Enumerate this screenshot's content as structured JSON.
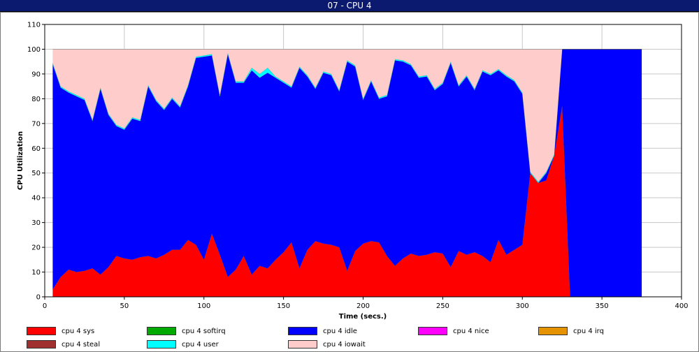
{
  "window": {
    "title": "07 - CPU 4"
  },
  "chart_data": {
    "type": "area",
    "stacked": true,
    "xlabel": "Time (secs.)",
    "ylabel": "CPU Utilization",
    "xlim": [
      0,
      400
    ],
    "ylim": [
      0,
      110
    ],
    "x_ticks": [
      0,
      50,
      100,
      150,
      200,
      250,
      300,
      350,
      400
    ],
    "y_ticks": [
      0,
      10,
      20,
      30,
      40,
      50,
      60,
      70,
      80,
      90,
      100,
      110
    ],
    "grid": true,
    "legend": "bottom",
    "x": [
      5,
      10,
      15,
      20,
      25,
      30,
      35,
      40,
      45,
      50,
      55,
      60,
      65,
      70,
      75,
      80,
      85,
      90,
      95,
      100,
      105,
      110,
      115,
      120,
      125,
      130,
      135,
      140,
      145,
      150,
      155,
      160,
      165,
      170,
      175,
      180,
      185,
      190,
      195,
      200,
      205,
      210,
      215,
      220,
      225,
      230,
      235,
      240,
      245,
      250,
      255,
      260,
      265,
      270,
      275,
      280,
      285,
      290,
      295,
      300,
      305,
      310,
      315,
      320,
      325,
      330,
      335,
      340,
      345,
      350,
      355,
      360,
      365,
      370,
      375
    ],
    "series": [
      {
        "name": "cpu 4 sys",
        "color": "#ff0000",
        "values": [
          3,
          8,
          11,
          10,
          10.5,
          11.5,
          9,
          12,
          16.5,
          15.5,
          15,
          16,
          16.5,
          15.5,
          17,
          19,
          19,
          23,
          21,
          15,
          25.5,
          17,
          8,
          11,
          16.5,
          9,
          12.5,
          11.5,
          15,
          18,
          22,
          11.5,
          19,
          22.5,
          21.5,
          21,
          20,
          10.5,
          18.5,
          21.5,
          22.5,
          22,
          16.5,
          12.5,
          15.5,
          17.5,
          16.5,
          17,
          18,
          17.5,
          12,
          18.5,
          17,
          18,
          16.5,
          14,
          23,
          17,
          19,
          21,
          50,
          46,
          47,
          57,
          77,
          0,
          0,
          0,
          0,
          0,
          0,
          0,
          0,
          0,
          0
        ]
      },
      {
        "name": "cpu 4 softirq",
        "color": "#00aa00",
        "values": [
          0,
          0,
          0,
          0,
          0,
          0,
          0,
          0,
          0,
          0,
          0,
          0,
          0,
          0,
          0,
          0,
          0,
          0,
          0,
          0,
          0,
          0,
          0,
          0,
          0,
          0,
          0,
          0,
          0,
          0,
          0,
          0,
          0,
          0,
          0,
          0,
          0,
          0,
          0,
          0,
          0,
          0,
          0,
          0,
          0,
          0,
          0,
          0,
          0,
          0,
          0,
          0,
          0,
          0,
          0,
          0,
          0,
          0,
          0,
          0,
          0,
          0,
          0,
          0,
          0,
          0,
          0,
          0,
          0,
          0,
          0,
          0,
          0,
          0,
          0
        ]
      },
      {
        "name": "cpu 4 idle",
        "color": "#0000ff",
        "values": [
          91,
          76.5,
          71.5,
          71,
          69,
          59.5,
          75,
          61.5,
          52.5,
          52,
          57,
          55,
          68.5,
          63.5,
          58.5,
          61,
          57.5,
          62,
          75.5,
          82,
          72,
          64,
          90,
          75.5,
          70,
          82.5,
          76,
          79,
          73.5,
          68.5,
          62.5,
          81,
          70,
          61.5,
          69,
          68.5,
          63,
          84.5,
          74.5,
          58,
          64.5,
          58,
          64.5,
          83,
          79.5,
          76,
          72,
          72,
          65.5,
          68.5,
          82.5,
          66.5,
          72,
          65.5,
          74.5,
          75.5,
          68.5,
          72,
          68,
          61,
          0,
          0,
          3,
          0,
          23,
          100,
          100,
          100,
          100,
          100,
          100,
          100,
          100,
          100,
          100
        ]
      },
      {
        "name": "cpu 4 nice",
        "color": "#ff00ff",
        "values": [
          0,
          0,
          0,
          0,
          0,
          0,
          0,
          0,
          0,
          0,
          0,
          0,
          0,
          0,
          0,
          0,
          0,
          0,
          0,
          0,
          0,
          0,
          0,
          0,
          0,
          0,
          0,
          0,
          0,
          0,
          0,
          0,
          0,
          0,
          0,
          0,
          0,
          0,
          0,
          0,
          0,
          0,
          0,
          0,
          0,
          0,
          0,
          0,
          0,
          0,
          0,
          0,
          0,
          0,
          0,
          0,
          0,
          0,
          0,
          0,
          0,
          0,
          0,
          0,
          0,
          0,
          0,
          0,
          0,
          0,
          0,
          0,
          0,
          0,
          0
        ]
      },
      {
        "name": "cpu 4 irq",
        "color": "#e59400",
        "values": [
          0,
          0,
          0,
          0,
          0,
          0,
          0,
          0,
          0,
          0,
          0,
          0,
          0,
          0,
          0,
          0,
          0,
          0,
          0,
          0,
          0,
          0,
          0,
          0,
          0,
          0,
          0,
          0,
          0,
          0,
          0,
          0,
          0,
          0,
          0,
          0,
          0,
          0,
          0,
          0,
          0,
          0,
          0,
          0,
          0,
          0,
          0,
          0,
          0,
          0,
          0,
          0,
          0,
          0,
          0,
          0,
          0,
          0,
          0,
          0,
          0,
          0,
          0,
          0,
          0,
          0,
          0,
          0,
          0,
          0,
          0,
          0,
          0,
          0,
          0
        ]
      },
      {
        "name": "cpu 4 steal",
        "color": "#a03030",
        "values": [
          0,
          0,
          0,
          0,
          0,
          0,
          0,
          0,
          0,
          0,
          0,
          0,
          0,
          0,
          0,
          0,
          0,
          0,
          0,
          0,
          0,
          0,
          0,
          0,
          0,
          0,
          0,
          0,
          0,
          0,
          0,
          0,
          0,
          0,
          0,
          0,
          0,
          0,
          0,
          0,
          0,
          0,
          0,
          0,
          0,
          0,
          0,
          0,
          0,
          0,
          0,
          0,
          0,
          0,
          0,
          0,
          0,
          0,
          0,
          0,
          0,
          0,
          0,
          0,
          0,
          0,
          0,
          0,
          0,
          0,
          0,
          0,
          0,
          0,
          0
        ]
      },
      {
        "name": "cpu 4 user",
        "color": "#00ffff",
        "values": [
          0.5,
          0.5,
          0.5,
          0.5,
          0.5,
          0.5,
          0.5,
          0.5,
          0.5,
          0.5,
          0.5,
          0.5,
          0.5,
          0.5,
          0.5,
          0.5,
          0.5,
          0.5,
          0.5,
          0.5,
          0.5,
          0.5,
          0.5,
          0.5,
          0.5,
          1,
          1.5,
          2,
          0.5,
          0.5,
          0.5,
          0.5,
          0.5,
          0.5,
          0.5,
          0.5,
          0.5,
          0.5,
          0.5,
          0.5,
          0.5,
          0.5,
          0.5,
          0.5,
          0.5,
          0.5,
          0.5,
          0.5,
          0.5,
          0.5,
          0.5,
          0.5,
          0.5,
          0.5,
          0.5,
          0.5,
          0.5,
          0.5,
          0.5,
          0.5,
          0.5,
          0.5,
          0.5,
          0.5,
          0,
          0,
          0,
          0,
          0,
          0,
          0,
          0,
          0,
          0,
          0
        ]
      },
      {
        "name": "cpu 4 iowait",
        "color": "#ffcccc",
        "values": [
          5.5,
          15,
          17,
          18.5,
          20,
          28.5,
          15.5,
          26,
          30.5,
          32,
          27.5,
          28.5,
          14.5,
          20.5,
          24,
          19.5,
          23,
          14.5,
          3,
          2.5,
          2,
          18.5,
          1.5,
          13,
          13,
          7.5,
          10,
          7.5,
          11,
          13,
          15,
          7,
          10.5,
          15.5,
          9,
          10,
          16.5,
          4.5,
          6.5,
          20,
          12.5,
          19.5,
          18.5,
          4,
          4.5,
          6,
          11,
          10.5,
          16,
          13.5,
          5,
          14.5,
          10.5,
          16,
          8.5,
          10,
          8,
          10.5,
          12.5,
          17.5,
          49.5,
          53.5,
          49.5,
          42.5,
          0,
          0,
          0,
          0,
          0,
          0,
          0,
          0,
          0,
          0,
          0
        ]
      }
    ]
  }
}
